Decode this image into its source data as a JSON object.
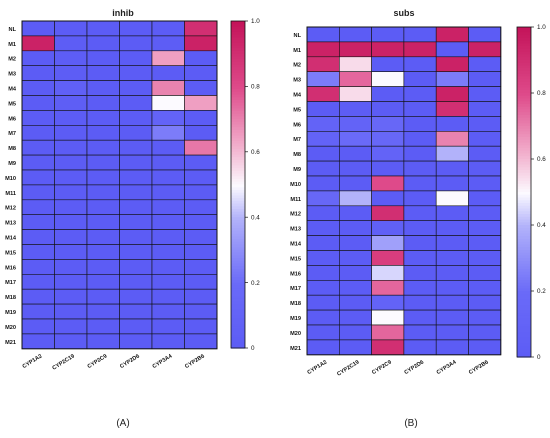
{
  "chart_data": [
    {
      "type": "heatmap",
      "title": "inhib",
      "panel_label": "(A)",
      "rows": [
        "NL",
        "M1",
        "M2",
        "M3",
        "M4",
        "M5",
        "M6",
        "M7",
        "M8",
        "M9",
        "M10",
        "M11",
        "M12",
        "M13",
        "M14",
        "M15",
        "M16",
        "M17",
        "M18",
        "M19",
        "M20",
        "M21"
      ],
      "columns": [
        "CYP1A2",
        "CYP2C19",
        "CYP2C9",
        "CYP2D6",
        "CYP3A4",
        "CYP2B6"
      ],
      "values": [
        [
          0,
          0,
          0,
          0,
          0,
          0.9
        ],
        [
          0.95,
          0.02,
          0,
          0,
          0.02,
          0.95
        ],
        [
          0,
          0.02,
          0,
          0,
          0.65,
          0
        ],
        [
          0,
          0.02,
          0,
          0,
          0,
          0
        ],
        [
          0,
          0.05,
          0,
          0,
          0.7,
          0
        ],
        [
          0,
          0.03,
          0,
          0,
          0.5,
          0.65
        ],
        [
          0,
          0,
          0,
          0,
          0.1,
          0
        ],
        [
          0,
          0,
          0,
          0,
          0.25,
          0
        ],
        [
          0,
          0,
          0,
          0,
          0,
          0.72
        ],
        [
          0,
          0,
          0,
          0,
          0,
          0
        ],
        [
          0,
          0,
          0,
          0,
          0,
          0
        ],
        [
          0,
          0,
          0,
          0,
          0,
          0
        ],
        [
          0,
          0,
          0,
          0,
          0,
          0
        ],
        [
          0,
          0,
          0,
          0,
          0,
          0
        ],
        [
          0,
          0,
          0,
          0,
          0,
          0
        ],
        [
          0,
          0,
          0,
          0,
          0,
          0
        ],
        [
          0,
          0,
          0,
          0,
          0,
          0
        ],
        [
          0,
          0,
          0,
          0,
          0,
          0
        ],
        [
          0,
          0,
          0,
          0,
          0,
          0
        ],
        [
          0,
          0,
          0,
          0,
          0,
          0
        ],
        [
          0,
          0,
          0,
          0,
          0,
          0
        ],
        [
          0,
          0,
          0,
          0,
          0,
          0
        ]
      ],
      "colorbar": {
        "min": 0,
        "max": 1.0,
        "ticks": [
          "0",
          "0.2",
          "0.4",
          "0.6",
          "0.8",
          "1.0"
        ]
      }
    },
    {
      "type": "heatmap",
      "title": "subs",
      "panel_label": "(B)",
      "rows": [
        "NL",
        "M1",
        "M2",
        "M3",
        "M4",
        "M5",
        "M6",
        "M7",
        "M8",
        "M9",
        "M10",
        "M11",
        "M12",
        "M13",
        "M14",
        "M15",
        "M16",
        "M17",
        "M18",
        "M19",
        "M20",
        "M21"
      ],
      "columns": [
        "CYP1A2",
        "CYP2C19",
        "CYP2C9",
        "CYP2D6",
        "CYP3A4",
        "CYP2B6"
      ],
      "values": [
        [
          0,
          0,
          0,
          0,
          0.95,
          0
        ],
        [
          0.95,
          0.95,
          0.95,
          0.95,
          0,
          0.95
        ],
        [
          0.9,
          0.55,
          0,
          0,
          0.95,
          0
        ],
        [
          0.25,
          0.75,
          0.5,
          0,
          0.25,
          0
        ],
        [
          0.9,
          0.55,
          0,
          0,
          0.95,
          0
        ],
        [
          0,
          0.02,
          0,
          0,
          0.9,
          0
        ],
        [
          0.1,
          0.1,
          0.15,
          0,
          0,
          0
        ],
        [
          0.1,
          0.2,
          0.15,
          0,
          0.7,
          0
        ],
        [
          0,
          0,
          0.1,
          0,
          0.4,
          0
        ],
        [
          0,
          0,
          0,
          0,
          0,
          0
        ],
        [
          0,
          0,
          0.8,
          0,
          0,
          0
        ],
        [
          0.15,
          0.4,
          0,
          0,
          0.5,
          0
        ],
        [
          0,
          0,
          0.9,
          0,
          0,
          0
        ],
        [
          0,
          0,
          0.05,
          0,
          0,
          0
        ],
        [
          0,
          0,
          0.35,
          0,
          0,
          0
        ],
        [
          0,
          0,
          0.85,
          0,
          0,
          0
        ],
        [
          0,
          0,
          0.45,
          0,
          0,
          0
        ],
        [
          0,
          0,
          0.75,
          0,
          0,
          0
        ],
        [
          0,
          0,
          0.1,
          0,
          0,
          0
        ],
        [
          0,
          0,
          0.5,
          0,
          0,
          0
        ],
        [
          0,
          0,
          0.75,
          0,
          0,
          0
        ],
        [
          0,
          0,
          0.9,
          0,
          0,
          0
        ]
      ],
      "colorbar": {
        "min": 0,
        "max": 1.0,
        "ticks": [
          "0",
          "0.2",
          "0.4",
          "0.6",
          "0.8",
          "1.0"
        ]
      }
    }
  ]
}
